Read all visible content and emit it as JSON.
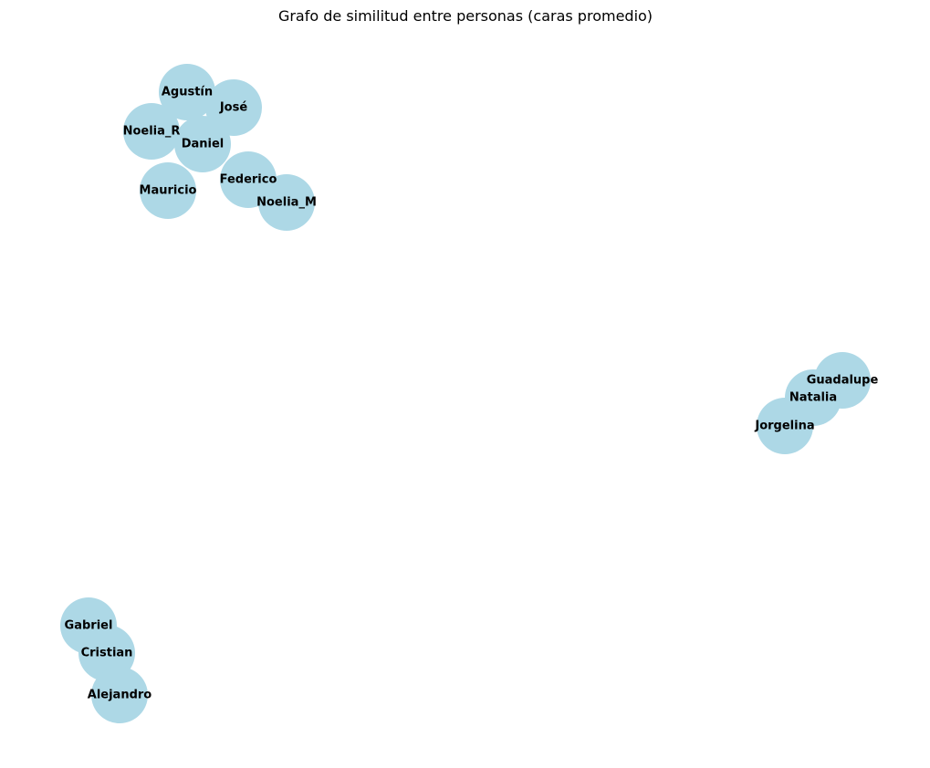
{
  "title": "Grafo de similitud entre personas (caras promedio)",
  "node_color": "#add8e6",
  "label_color": "#000000",
  "nodes": [
    {
      "id": "agustin",
      "label": "Agustín"
    },
    {
      "id": "jose",
      "label": "José"
    },
    {
      "id": "noelia_r",
      "label": "Noelia_R"
    },
    {
      "id": "daniel",
      "label": "Daniel"
    },
    {
      "id": "mauricio",
      "label": "Mauricio"
    },
    {
      "id": "federico",
      "label": "Federico"
    },
    {
      "id": "noelia_m",
      "label": "Noelia_M"
    },
    {
      "id": "guadalupe",
      "label": "Guadalupe"
    },
    {
      "id": "natalia",
      "label": "Natalia"
    },
    {
      "id": "jorgelina",
      "label": "Jorgelina"
    },
    {
      "id": "gabriel",
      "label": "Gabriel"
    },
    {
      "id": "cristian",
      "label": "Cristian"
    },
    {
      "id": "alejandro",
      "label": "Alejandro"
    }
  ]
}
